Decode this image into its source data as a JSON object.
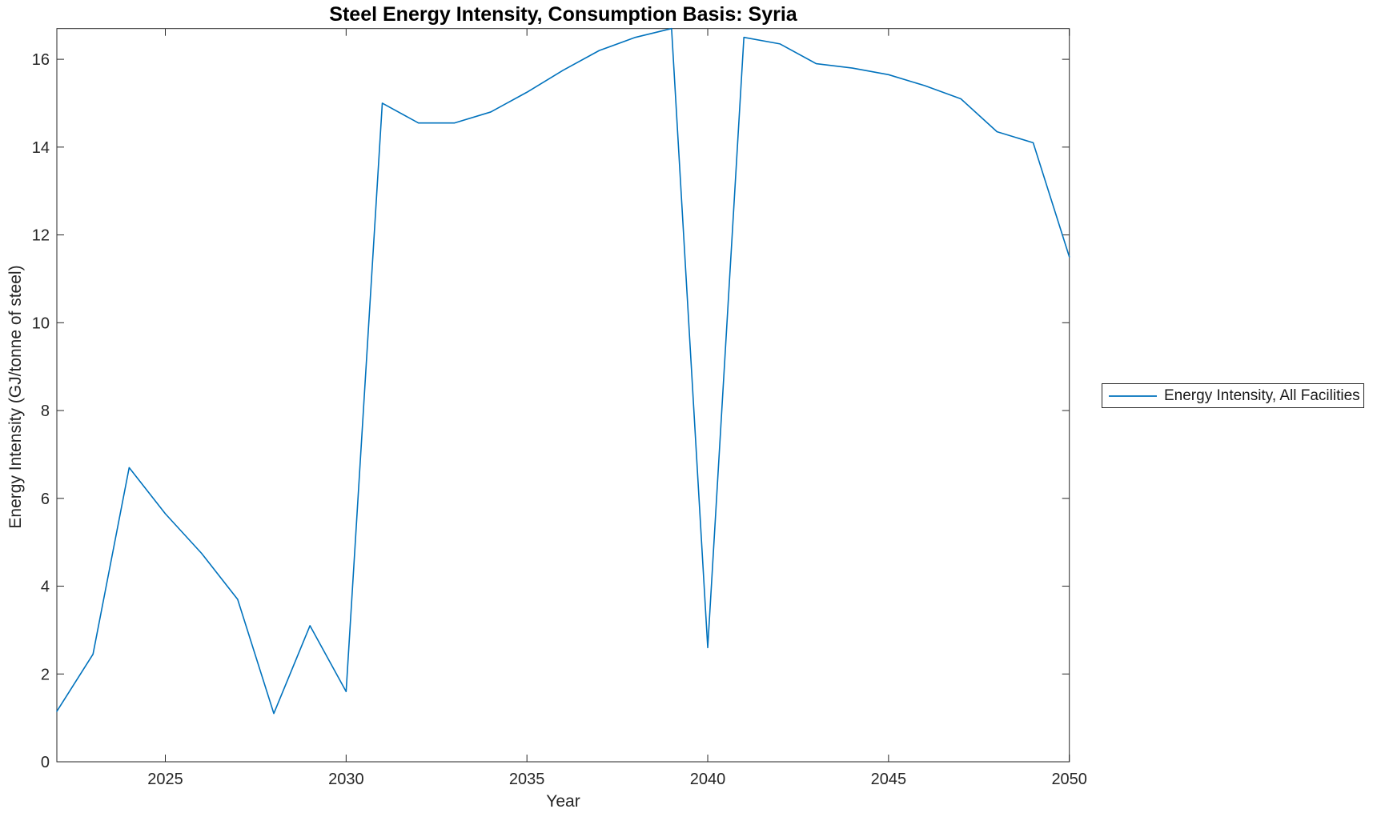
{
  "chart_data": {
    "type": "line",
    "title": "Steel Energy Intensity, Consumption Basis: Syria",
    "xlabel": "Year",
    "ylabel": "Energy Intensity (GJ/tonne of steel)",
    "xlim": [
      2022,
      2050
    ],
    "ylim": [
      0,
      16.7
    ],
    "xticks": [
      2025,
      2030,
      2035,
      2040,
      2045,
      2050
    ],
    "yticks": [
      0,
      2,
      4,
      6,
      8,
      10,
      12,
      14,
      16
    ],
    "grid": false,
    "box": true,
    "tick_direction": "in",
    "legend_position": "outside-right",
    "axis_color": "#262626",
    "background_color": "#ffffff",
    "series": [
      {
        "name": "Energy Intensity, All Facilities",
        "color": "#0072BD",
        "x": [
          2022,
          2023,
          2024,
          2025,
          2026,
          2027,
          2028,
          2029,
          2030,
          2031,
          2032,
          2033,
          2034,
          2035,
          2036,
          2037,
          2038,
          2039,
          2040,
          2041,
          2042,
          2043,
          2044,
          2045,
          2046,
          2047,
          2048,
          2049,
          2050
        ],
        "y": [
          1.15,
          2.45,
          6.7,
          5.65,
          4.75,
          3.7,
          1.1,
          3.1,
          1.6,
          15.0,
          14.55,
          14.55,
          14.8,
          15.25,
          15.75,
          16.2,
          16.5,
          16.7,
          2.6,
          16.5,
          16.35,
          15.9,
          15.8,
          15.65,
          15.4,
          15.1,
          14.35,
          14.1,
          11.5
        ]
      }
    ]
  }
}
